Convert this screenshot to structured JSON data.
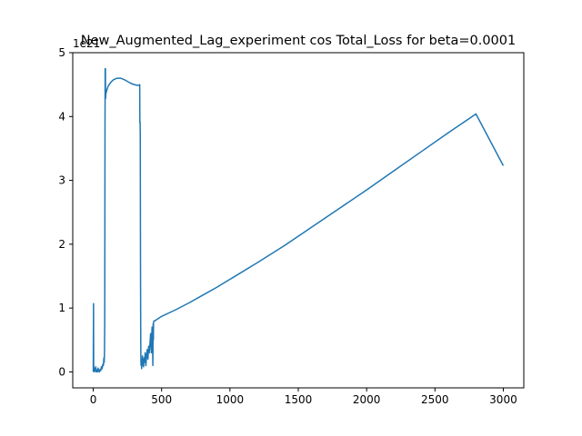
{
  "chart_data": {
    "type": "line",
    "title": "New_Augmented_Lag_experiment cos Total_Loss for beta=0.0001",
    "xlabel": "",
    "ylabel": "",
    "y_offset_label": "1e21",
    "xlim": [
      -150,
      3150
    ],
    "ylim": [
      -0.25,
      5.0
    ],
    "xticks": [
      0,
      500,
      1000,
      1500,
      2000,
      2500,
      3000
    ],
    "xtick_labels": [
      "0",
      "500",
      "1000",
      "1500",
      "2000",
      "2500",
      "3000"
    ],
    "yticks": [
      0,
      1,
      2,
      3,
      4,
      5
    ],
    "ytick_labels": [
      "0",
      "1",
      "2",
      "3",
      "4",
      "5"
    ],
    "grid": false,
    "legend": "none",
    "series": [
      {
        "color": "#1f77b4",
        "x": [
          0,
          2,
          3,
          5,
          8,
          10,
          14,
          18,
          22,
          26,
          30,
          35,
          40,
          45,
          50,
          55,
          60,
          65,
          70,
          74,
          78,
          80,
          82,
          84,
          85,
          86,
          87,
          88,
          89,
          90,
          92,
          95,
          100,
          110,
          130,
          150,
          175,
          200,
          225,
          250,
          275,
          300,
          320,
          335,
          340,
          341,
          342,
          343,
          344,
          345,
          346,
          347,
          348,
          349,
          350,
          352,
          354,
          356,
          358,
          360,
          362,
          365,
          368,
          372,
          376,
          380,
          385,
          390,
          395,
          400,
          405,
          410,
          415,
          420,
          425,
          430,
          434,
          436,
          438,
          440,
          441,
          443,
          445,
          450,
          500,
          600,
          700,
          800,
          900,
          1000,
          1200,
          1400,
          1600,
          1800,
          2000,
          2200,
          2400,
          2600,
          2800,
          3000
        ],
        "values": [
          0.0,
          1.07,
          0.1,
          0.05,
          0.0,
          0.05,
          0.02,
          0.08,
          0.0,
          0.03,
          0.0,
          0.06,
          0.01,
          0.0,
          0.04,
          0.02,
          0.08,
          0.05,
          0.12,
          0.1,
          0.22,
          0.15,
          0.28,
          0.8,
          2.2,
          3.8,
          4.75,
          4.3,
          4.75,
          4.28,
          4.35,
          4.38,
          4.42,
          4.48,
          4.54,
          4.58,
          4.6,
          4.6,
          4.58,
          4.55,
          4.52,
          4.5,
          4.49,
          4.49,
          4.5,
          3.9,
          3.92,
          3.88,
          3.7,
          2.5,
          1.45,
          0.8,
          0.3,
          0.15,
          0.1,
          0.2,
          0.05,
          0.15,
          0.1,
          0.25,
          0.12,
          0.2,
          0.08,
          0.22,
          0.15,
          0.3,
          0.1,
          0.25,
          0.35,
          0.2,
          0.4,
          0.3,
          0.45,
          0.6,
          0.3,
          0.7,
          0.5,
          0.1,
          0.75,
          0.5,
          0.78,
          0.79,
          0.8,
          0.8,
          0.87,
          0.97,
          1.08,
          1.2,
          1.32,
          1.45,
          1.71,
          1.98,
          2.27,
          2.56,
          2.85,
          3.15,
          3.45,
          3.75,
          4.04,
          3.23
        ]
      }
    ]
  }
}
